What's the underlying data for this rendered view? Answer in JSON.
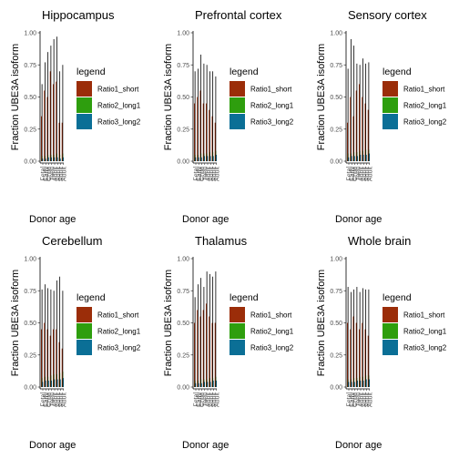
{
  "figure": {
    "ylabel": "Fraction UBE3A isoform",
    "xlabel": "Donor age",
    "legend_title": "legend",
    "legend_items": [
      {
        "label": "Ratio1_short",
        "color": "#9b2d09"
      },
      {
        "label": "Ratio2_long1",
        "color": "#2e9e0e"
      },
      {
        "label": "Ratio3_long2",
        "color": "#0b6f96"
      }
    ],
    "yticks": [
      "0.00",
      "0.25",
      "0.50",
      "0.75",
      "1.00"
    ],
    "xticks": [
      "Fetal",
      "Early",
      "Child",
      "Teen",
      "Adult",
      "Adult",
      "Adult",
      "Adult"
    ]
  },
  "chart_data": [
    {
      "type": "bar",
      "title": "Hippocampus",
      "categories": [
        "Fetal",
        "Early",
        "Child",
        "Teen",
        "Adult",
        "Adult",
        "Adult",
        "Adult"
      ],
      "ylim": [
        0,
        1
      ],
      "series": [
        {
          "name": "Ratio1_short",
          "values": [
            0.35,
            0.55,
            0.5,
            0.7,
            0.6,
            0.62,
            0.3,
            0.3
          ]
        },
        {
          "name": "Ratio2_long1",
          "values": [
            0.04,
            0.04,
            0.05,
            0.05,
            0.05,
            0.06,
            0.05,
            0.06
          ]
        },
        {
          "name": "Ratio3_long2",
          "values": [
            0.02,
            0.02,
            0.03,
            0.03,
            0.03,
            0.03,
            0.02,
            0.03
          ]
        }
      ],
      "error_high": [
        0.6,
        0.77,
        0.85,
        0.9,
        0.95,
        0.97,
        0.7,
        0.75
      ]
    },
    {
      "type": "bar",
      "title": "Prefrontal cortex",
      "categories": [
        "Fetal",
        "Early",
        "Child",
        "Teen",
        "Adult",
        "Adult",
        "Adult",
        "Adult"
      ],
      "ylim": [
        0,
        1
      ],
      "series": [
        {
          "name": "Ratio1_short",
          "values": [
            0.45,
            0.5,
            0.55,
            0.45,
            0.45,
            0.4,
            0.35,
            0.3
          ]
        },
        {
          "name": "Ratio2_long1",
          "values": [
            0.05,
            0.05,
            0.06,
            0.06,
            0.06,
            0.07,
            0.07,
            0.08
          ]
        },
        {
          "name": "Ratio3_long2",
          "values": [
            0.03,
            0.03,
            0.03,
            0.04,
            0.04,
            0.04,
            0.04,
            0.05
          ]
        }
      ],
      "error_high": [
        0.7,
        0.72,
        0.83,
        0.76,
        0.75,
        0.7,
        0.7,
        0.66
      ]
    },
    {
      "type": "bar",
      "title": "Sensory cortex",
      "categories": [
        "Fetal",
        "Early",
        "Child",
        "Teen",
        "Adult",
        "Adult",
        "Adult",
        "Adult"
      ],
      "ylim": [
        0,
        1
      ],
      "series": [
        {
          "name": "Ratio1_short",
          "values": [
            0.3,
            0.5,
            0.35,
            0.55,
            0.6,
            0.5,
            0.45,
            0.4
          ]
        },
        {
          "name": "Ratio2_long1",
          "values": [
            0.06,
            0.06,
            0.07,
            0.07,
            0.08,
            0.08,
            0.09,
            0.09
          ]
        },
        {
          "name": "Ratio3_long2",
          "values": [
            0.03,
            0.04,
            0.04,
            0.04,
            0.05,
            0.05,
            0.05,
            0.06
          ]
        }
      ],
      "error_high": [
        0.72,
        0.95,
        0.9,
        0.76,
        0.75,
        0.8,
        0.76,
        0.77
      ]
    },
    {
      "type": "bar",
      "title": "Cerebellum",
      "categories": [
        "Fetal",
        "Early",
        "Child",
        "Teen",
        "Adult",
        "Adult",
        "Adult",
        "Adult"
      ],
      "ylim": [
        0,
        1
      ],
      "series": [
        {
          "name": "Ratio1_short",
          "values": [
            0.45,
            0.5,
            0.45,
            0.4,
            0.45,
            0.45,
            0.35,
            0.3
          ]
        },
        {
          "name": "Ratio2_long1",
          "values": [
            0.07,
            0.08,
            0.08,
            0.09,
            0.1,
            0.1,
            0.11,
            0.12
          ]
        },
        {
          "name": "Ratio3_long2",
          "values": [
            0.04,
            0.05,
            0.05,
            0.05,
            0.06,
            0.06,
            0.06,
            0.07
          ]
        }
      ],
      "error_high": [
        0.76,
        0.8,
        0.77,
        0.76,
        0.75,
        0.83,
        0.86,
        0.75
      ]
    },
    {
      "type": "bar",
      "title": "Thalamus",
      "categories": [
        "Fetal",
        "Early",
        "Child",
        "Teen",
        "Adult",
        "Adult",
        "Adult",
        "Adult"
      ],
      "ylim": [
        0,
        1
      ],
      "series": [
        {
          "name": "Ratio1_short",
          "values": [
            0.5,
            0.6,
            0.55,
            0.6,
            0.65,
            0.55,
            0.5,
            0.5
          ]
        },
        {
          "name": "Ratio2_long1",
          "values": [
            0.05,
            0.05,
            0.06,
            0.06,
            0.06,
            0.07,
            0.07,
            0.08
          ]
        },
        {
          "name": "Ratio3_long2",
          "values": [
            0.03,
            0.03,
            0.03,
            0.04,
            0.04,
            0.04,
            0.05,
            0.05
          ]
        }
      ],
      "error_high": [
        0.7,
        0.8,
        0.85,
        0.78,
        0.9,
        0.88,
        0.86,
        0.9
      ]
    },
    {
      "type": "bar",
      "title": "Whole brain",
      "categories": [
        "Fetal",
        "Early",
        "Child",
        "Teen",
        "Adult",
        "Adult",
        "Adult",
        "Adult"
      ],
      "ylim": [
        0,
        1
      ],
      "series": [
        {
          "name": "Ratio1_short",
          "values": [
            0.5,
            0.45,
            0.55,
            0.5,
            0.45,
            0.5,
            0.45,
            0.4
          ]
        },
        {
          "name": "Ratio2_long1",
          "values": [
            0.06,
            0.06,
            0.07,
            0.07,
            0.08,
            0.08,
            0.09,
            0.09
          ]
        },
        {
          "name": "Ratio3_long2",
          "values": [
            0.04,
            0.04,
            0.04,
            0.05,
            0.05,
            0.05,
            0.06,
            0.06
          ]
        }
      ],
      "error_high": [
        0.78,
        0.74,
        0.76,
        0.78,
        0.74,
        0.77,
        0.76,
        0.76
      ]
    }
  ]
}
